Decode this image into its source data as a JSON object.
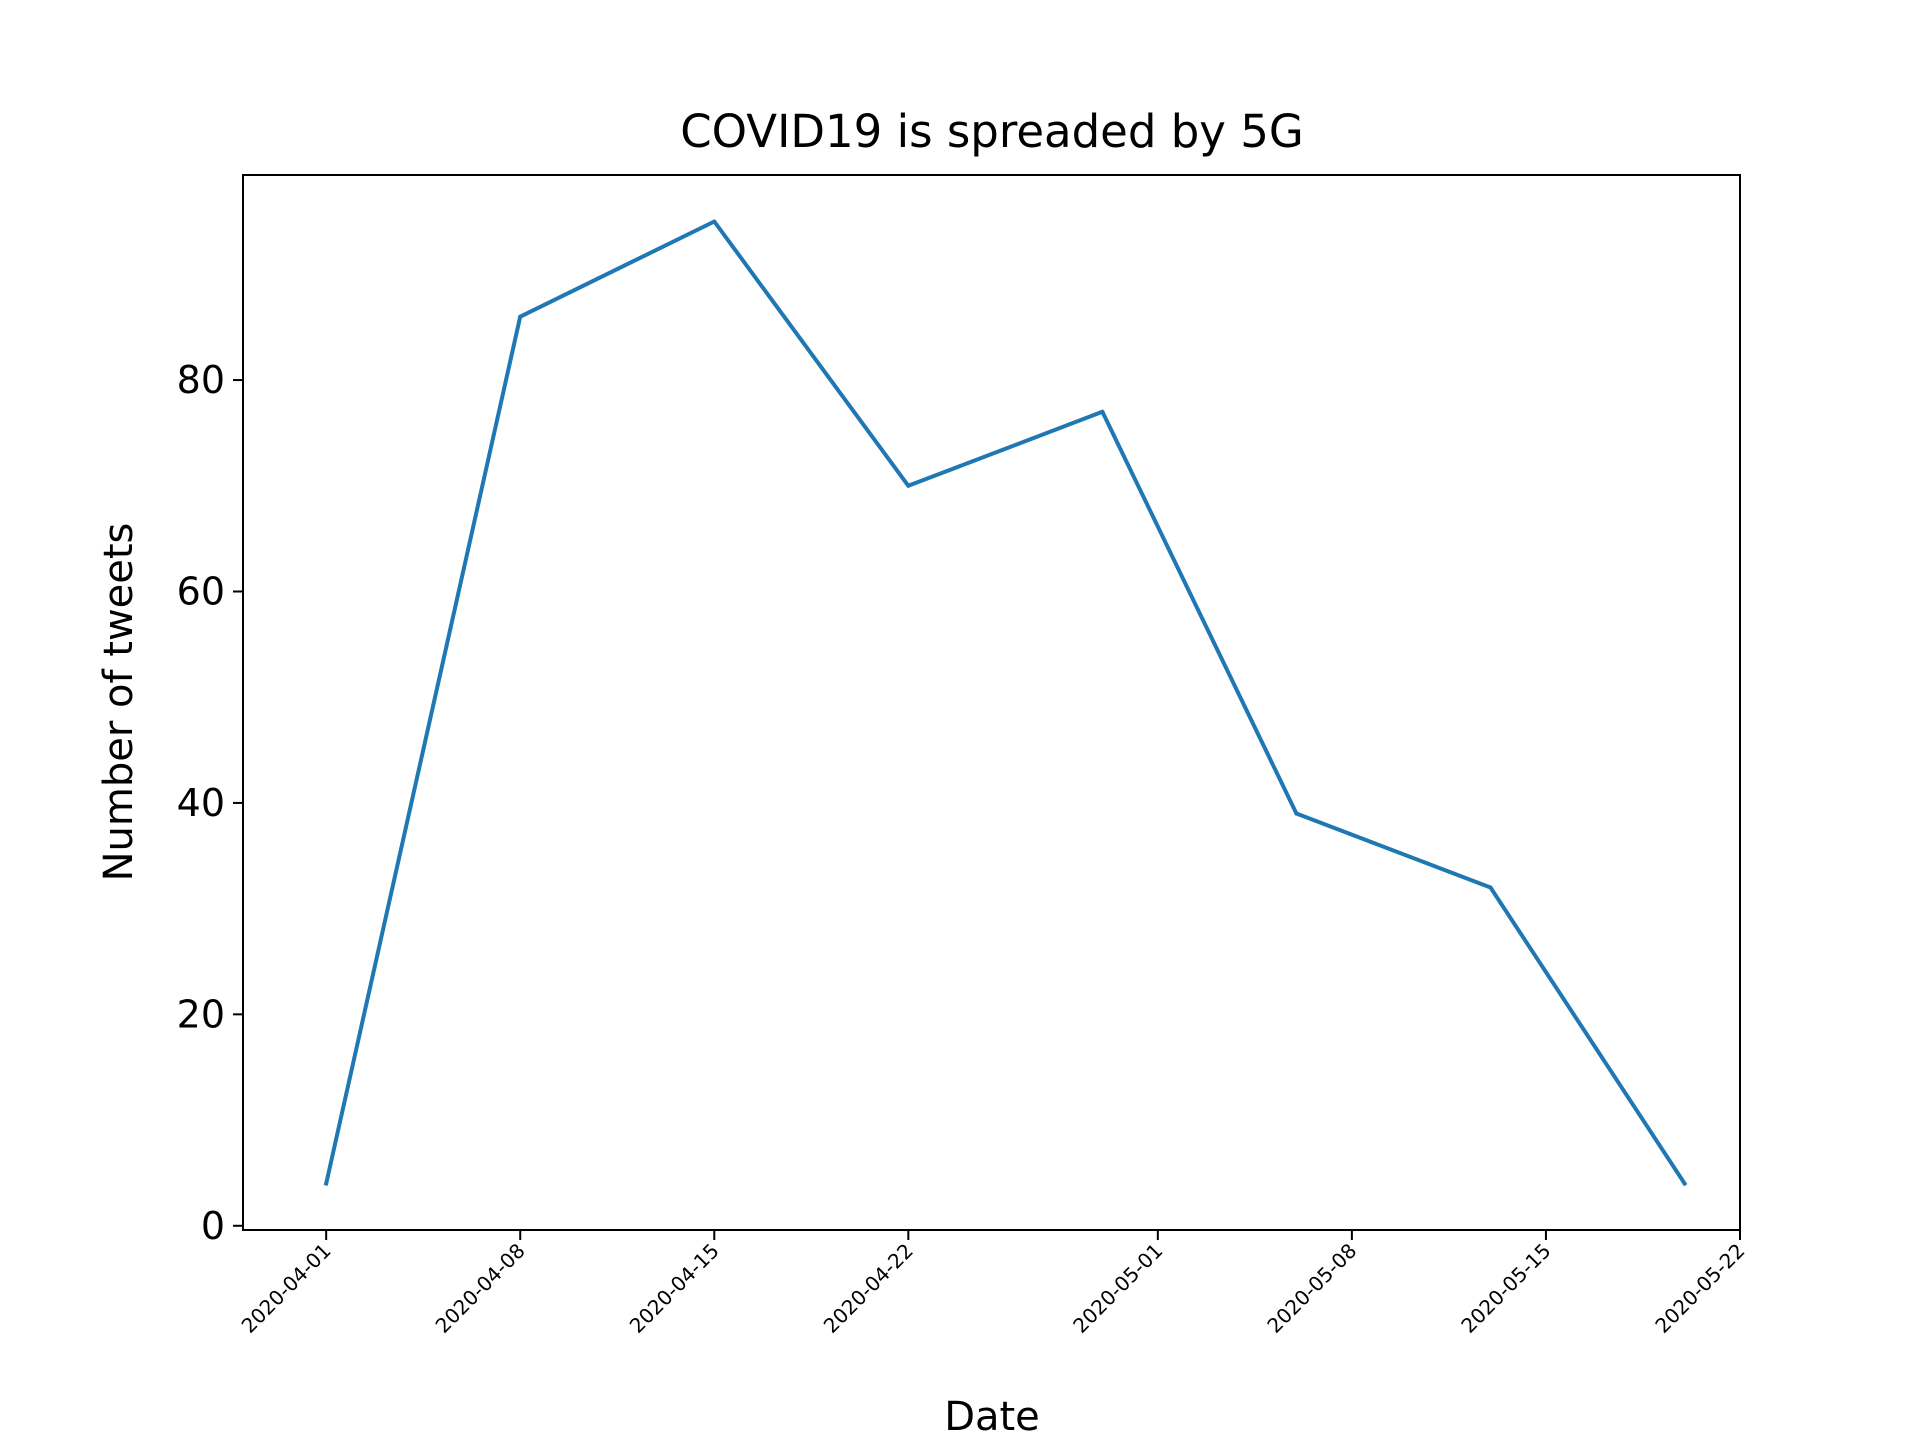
{
  "chart_data": {
    "type": "line",
    "title": "COVID19 is spreaded by 5G",
    "xlabel": "Date",
    "ylabel": "Number of tweets",
    "x": [
      "2020-04-01",
      "2020-04-08",
      "2020-04-15",
      "2020-04-22",
      "2020-04-29",
      "2020-05-06",
      "2020-05-13",
      "2020-05-20"
    ],
    "series": [
      {
        "values": [
          4,
          86,
          95,
          70,
          77,
          39,
          32,
          4
        ]
      }
    ],
    "xticks": [
      "2020-04-01",
      "2020-04-08",
      "2020-04-15",
      "2020-04-22",
      "2020-05-01",
      "2020-05-08",
      "2020-05-15",
      "2020-05-22"
    ],
    "xlim": [
      "2020-03-29",
      "2020-05-22"
    ],
    "yticks": [
      0,
      20,
      40,
      60,
      80
    ],
    "ylim": [
      -0.4,
      99.4
    ],
    "grid": false,
    "legend": "none",
    "line_color": "#1f77b4"
  }
}
